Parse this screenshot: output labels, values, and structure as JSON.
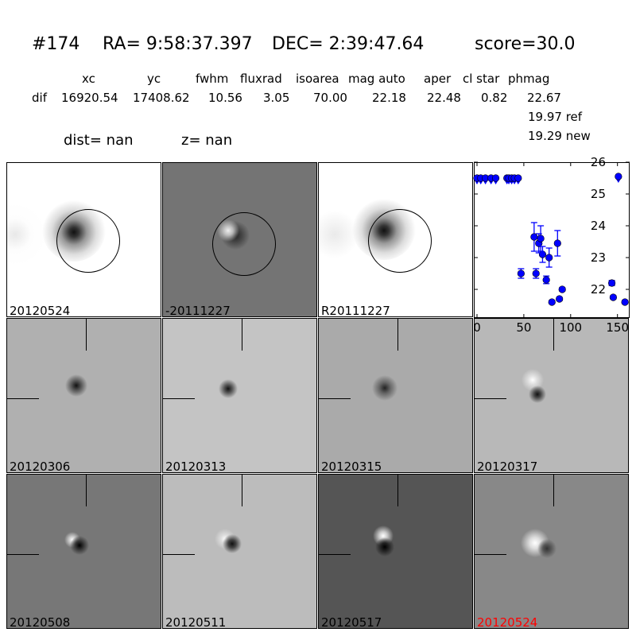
{
  "header": {
    "title_id": "#174",
    "title_ra": "RA= 9:58:37.397",
    "title_dec": "DEC= 2:39:47.64",
    "title_score": "score=30.0",
    "columns": [
      "xc",
      "yc",
      "fwhm",
      "fluxrad",
      "isoarea",
      "mag auto",
      "aper",
      "cl star",
      "phmag"
    ],
    "row_label": "dif",
    "values": [
      "16920.54",
      "17408.62",
      "10.56",
      "3.05",
      "70.00",
      "22.18",
      "22.48",
      "0.82",
      "22.67"
    ],
    "ref": "19.97 ref",
    "new": "19.29 new",
    "dist": "dist=   nan",
    "z": "z=   nan"
  },
  "stamps": [
    {
      "label": "20120524"
    },
    {
      "label": "-20111227"
    },
    {
      "label": "R20111227"
    },
    {
      "label": "20120306"
    },
    {
      "label": "20120313"
    },
    {
      "label": "20120315"
    },
    {
      "label": "20120317"
    },
    {
      "label": "20120508"
    },
    {
      "label": "20120511"
    },
    {
      "label": "20120517"
    },
    {
      "label": "20120524",
      "color": "#ff0000"
    }
  ],
  "chart_data": {
    "type": "scatter",
    "xlim": [
      -3.4,
      163
    ],
    "ylim": [
      26,
      21.1
    ],
    "y_inverted": true,
    "xticks": [
      "0",
      "50",
      "100",
      "150"
    ],
    "yticks": [
      "22",
      "23",
      "24",
      "25",
      "26"
    ],
    "marker_color": "#0000ff",
    "detections": [
      {
        "x": 47,
        "y": 22.5,
        "err": 0.15
      },
      {
        "x": 63,
        "y": 22.5,
        "err": 0.15
      },
      {
        "x": 74,
        "y": 22.3,
        "err": 0.12
      },
      {
        "x": 80,
        "y": 21.6,
        "err": 0.05
      },
      {
        "x": 88,
        "y": 21.7,
        "err": 0.05
      },
      {
        "x": 91,
        "y": 22.0,
        "err": 0.05
      },
      {
        "x": 77,
        "y": 23.0,
        "err": 0.3
      },
      {
        "x": 70,
        "y": 23.1,
        "err": 0.25
      },
      {
        "x": 66,
        "y": 23.45,
        "err": 0.3
      },
      {
        "x": 61,
        "y": 23.65,
        "err": 0.45
      },
      {
        "x": 68,
        "y": 23.6,
        "err": 0.4
      },
      {
        "x": 86,
        "y": 23.45,
        "err": 0.4
      },
      {
        "x": 144,
        "y": 22.2,
        "err": 0.08
      },
      {
        "x": 145.5,
        "y": 21.75,
        "err": 0.05
      },
      {
        "x": 158,
        "y": 21.6,
        "err": 0.05
      }
    ],
    "upper_limits": [
      {
        "x": 0,
        "y": 25.5
      },
      {
        "x": 4,
        "y": 25.5
      },
      {
        "x": 9,
        "y": 25.5
      },
      {
        "x": 15,
        "y": 25.5
      },
      {
        "x": 20,
        "y": 25.5
      },
      {
        "x": 32,
        "y": 25.5
      },
      {
        "x": 34,
        "y": 25.5
      },
      {
        "x": 37,
        "y": 25.5
      },
      {
        "x": 40,
        "y": 25.5
      },
      {
        "x": 44,
        "y": 25.5
      },
      {
        "x": 151,
        "y": 25.55
      }
    ]
  }
}
